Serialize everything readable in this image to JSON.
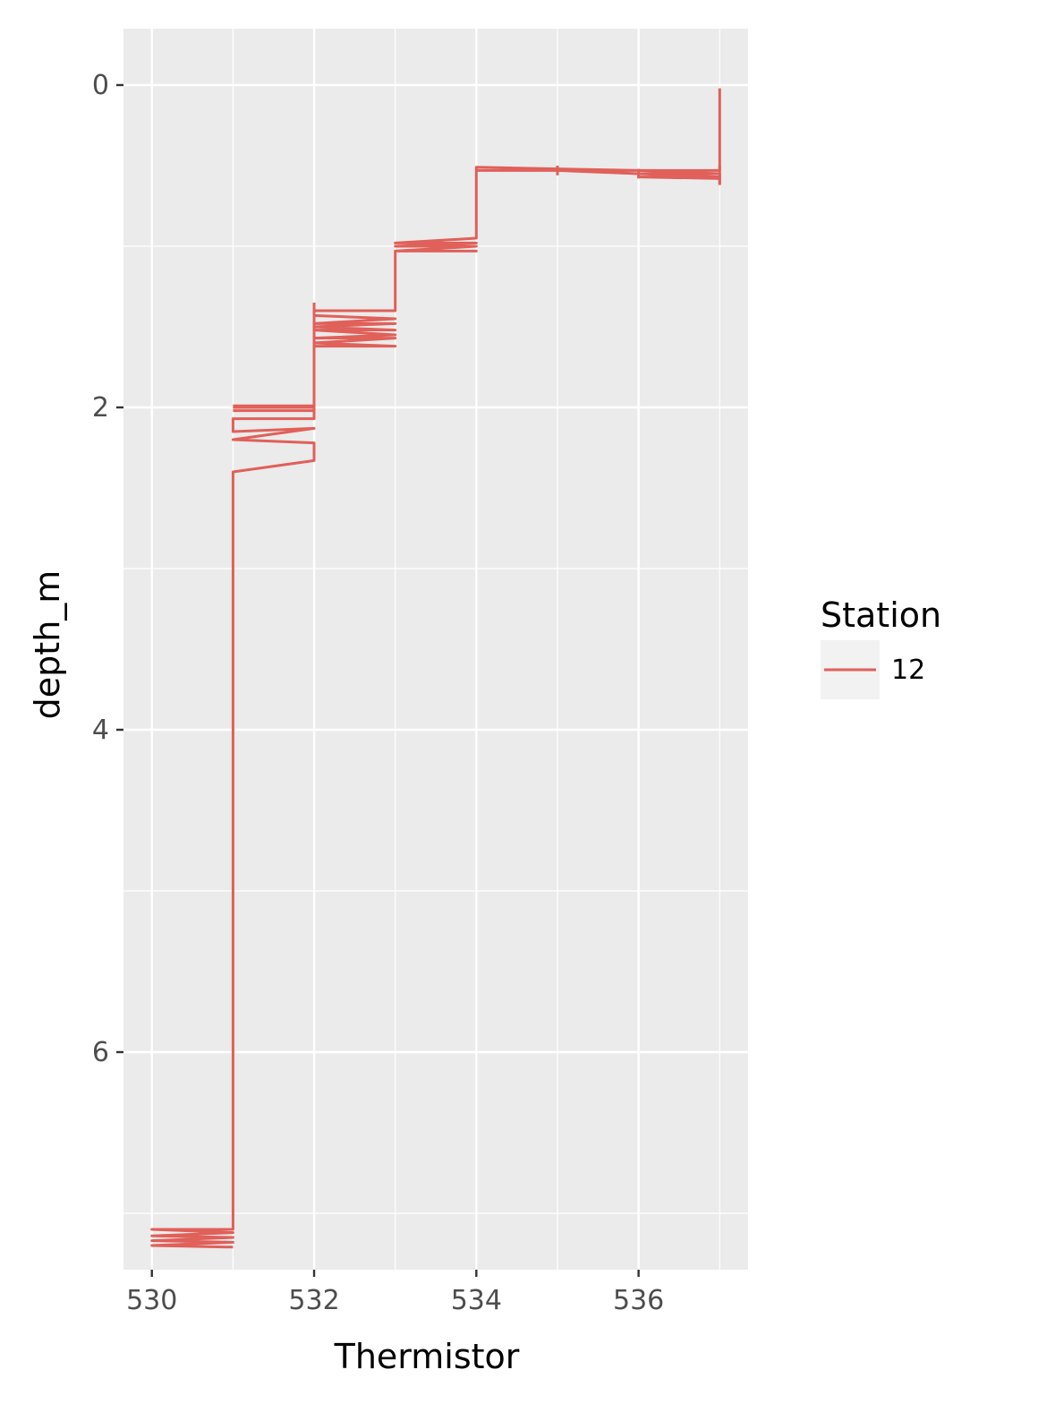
{
  "chart_data": {
    "type": "line",
    "title": "",
    "xlabel": "Thermistor",
    "ylabel": "depth_m",
    "xlim": [
      529.65,
      537.35
    ],
    "ylim": [
      7.35,
      -0.35
    ],
    "y_reversed": true,
    "grid": true,
    "x_ticks": [
      530,
      532,
      534,
      536
    ],
    "x_minor": [
      531,
      533,
      535,
      537
    ],
    "y_ticks": [
      0,
      2,
      4,
      6
    ],
    "y_minor": [
      1,
      3,
      5,
      7
    ],
    "legend": {
      "title": "Station",
      "position": "right"
    },
    "series": [
      {
        "name": "12",
        "color": "#e0605a",
        "points": [
          [
            537,
            0.02
          ],
          [
            537,
            0.53
          ],
          [
            536,
            0.53
          ],
          [
            537,
            0.55
          ],
          [
            536,
            0.55
          ],
          [
            537,
            0.57
          ],
          [
            536,
            0.57
          ],
          [
            537,
            0.58
          ],
          [
            537,
            0.61
          ],
          [
            537,
            0.55
          ],
          [
            536,
            0.55
          ],
          [
            535,
            0.53
          ],
          [
            534,
            0.53
          ],
          [
            534,
            0.51
          ],
          [
            535,
            0.52
          ],
          [
            536,
            0.53
          ],
          [
            535,
            0.53
          ],
          [
            534,
            0.53
          ],
          [
            534,
            0.95
          ],
          [
            533,
            0.98
          ],
          [
            534,
            0.98
          ],
          [
            533,
            1.0
          ],
          [
            534,
            1.0
          ],
          [
            533,
            1.03
          ],
          [
            534,
            1.03
          ],
          [
            533,
            1.03
          ],
          [
            533,
            1.4
          ],
          [
            532,
            1.4
          ],
          [
            532,
            1.43
          ],
          [
            533,
            1.45
          ],
          [
            532,
            1.48
          ],
          [
            533,
            1.48
          ],
          [
            532,
            1.5
          ],
          [
            533,
            1.52
          ],
          [
            532,
            1.52
          ],
          [
            533,
            1.55
          ],
          [
            532,
            1.57
          ],
          [
            533,
            1.57
          ],
          [
            532,
            1.6
          ],
          [
            533,
            1.62
          ],
          [
            532,
            1.62
          ],
          [
            532,
            2.07
          ],
          [
            531,
            2.07
          ],
          [
            531,
            2.15
          ],
          [
            532,
            2.13
          ],
          [
            531,
            2.2
          ],
          [
            532,
            2.22
          ],
          [
            532,
            2.33
          ],
          [
            531,
            2.4
          ],
          [
            531,
            7.1
          ],
          [
            530,
            7.1
          ],
          [
            531,
            7.12
          ],
          [
            530,
            7.14
          ],
          [
            531,
            7.15
          ],
          [
            530,
            7.17
          ],
          [
            531,
            7.18
          ],
          [
            530,
            7.2
          ],
          [
            531,
            7.21
          ]
        ],
        "extra_segments": [
          [
            [
              531,
              1.99
            ],
            [
              532,
              1.99
            ]
          ],
          [
            [
              531,
              2.0
            ],
            [
              532,
              2.0
            ]
          ],
          [
            [
              531,
              2.02
            ],
            [
              532,
              2.02
            ]
          ],
          [
            [
              532,
              1.35
            ],
            [
              532,
              1.62
            ]
          ],
          [
            [
              535,
              0.5
            ],
            [
              535,
              0.56
            ]
          ],
          [
            [
              536,
              0.52
            ],
            [
              536,
              0.58
            ]
          ],
          [
            [
              537,
              0.5
            ],
            [
              537,
              0.62
            ]
          ]
        ]
      }
    ]
  }
}
